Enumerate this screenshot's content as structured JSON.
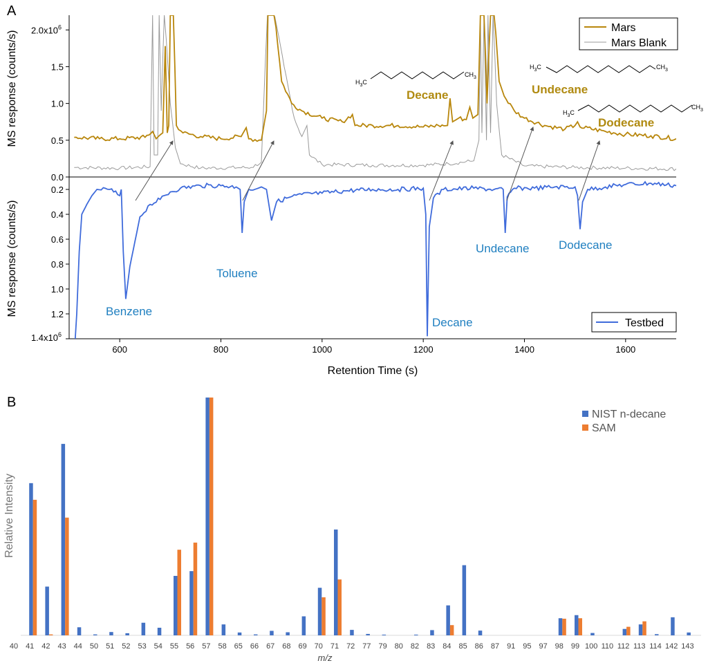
{
  "colors": {
    "mars": "#b8860b",
    "mars_label": "#b08a10",
    "blank": "#999999",
    "testbed": "#3f6bdb",
    "testbed_label": "#1f7fc0",
    "nist": "#4472c4",
    "sam": "#ed7d31",
    "arrow": "#555555"
  },
  "chart_data": [
    {
      "type": "line",
      "panel": "A (upper)",
      "panel_label": "A",
      "ylabel": "MS response (counts/s)",
      "y_ticks": [
        "0.0",
        "0.5",
        "1.0",
        "1.5",
        "2.0x10"
      ],
      "y_tick_exp": "6",
      "y_tick_values": [
        0,
        0.5,
        1.0,
        1.5,
        2.0
      ],
      "ylim": [
        0,
        2.2
      ],
      "xlim": [
        500,
        1700
      ],
      "series": [
        {
          "name": "Mars",
          "points": [
            [
              510,
              0.54
            ],
            [
              560,
              0.52
            ],
            [
              600,
              0.52
            ],
            [
              650,
              0.54
            ],
            [
              665,
              0.62
            ],
            [
              672,
              0.52
            ],
            [
              685,
              0.6
            ],
            [
              690,
              1.78
            ],
            [
              694,
              0.6
            ],
            [
              697,
              0.7
            ],
            [
              700,
              2.3
            ],
            [
              706,
              2.3
            ],
            [
              712,
              0.7
            ],
            [
              725,
              0.6
            ],
            [
              760,
              0.55
            ],
            [
              800,
              0.52
            ],
            [
              840,
              0.55
            ],
            [
              850,
              0.67
            ],
            [
              855,
              0.52
            ],
            [
              880,
              0.5
            ],
            [
              890,
              0.9
            ],
            [
              893,
              2.3
            ],
            [
              905,
              2.3
            ],
            [
              920,
              1.3
            ],
            [
              940,
              1.0
            ],
            [
              960,
              0.9
            ],
            [
              1000,
              0.8
            ],
            [
              1040,
              0.75
            ],
            [
              1060,
              0.85
            ],
            [
              1065,
              0.7
            ],
            [
              1100,
              0.7
            ],
            [
              1150,
              0.7
            ],
            [
              1200,
              0.68
            ],
            [
              1230,
              0.7
            ],
            [
              1248,
              0.7
            ],
            [
              1253,
              1.07
            ],
            [
              1258,
              0.75
            ],
            [
              1270,
              0.8
            ],
            [
              1285,
              0.78
            ],
            [
              1292,
              0.95
            ],
            [
              1298,
              0.8
            ],
            [
              1308,
              0.85
            ],
            [
              1313,
              2.3
            ],
            [
              1320,
              2.3
            ],
            [
              1326,
              1.0
            ],
            [
              1333,
              2.3
            ],
            [
              1340,
              2.3
            ],
            [
              1350,
              1.3
            ],
            [
              1360,
              1.1
            ],
            [
              1380,
              0.9
            ],
            [
              1400,
              0.8
            ],
            [
              1440,
              0.7
            ],
            [
              1480,
              0.65
            ],
            [
              1500,
              0.7
            ],
            [
              1505,
              0.75
            ],
            [
              1510,
              0.68
            ],
            [
              1560,
              0.62
            ],
            [
              1600,
              0.58
            ],
            [
              1650,
              0.56
            ],
            [
              1700,
              0.52
            ]
          ],
          "noise": 0.03
        },
        {
          "name": "Mars Blank",
          "points": [
            [
              510,
              0.13
            ],
            [
              600,
              0.12
            ],
            [
              660,
              0.14
            ],
            [
              665,
              2.3
            ],
            [
              668,
              0.3
            ],
            [
              675,
              0.3
            ],
            [
              678,
              2.3
            ],
            [
              682,
              0.9
            ],
            [
              688,
              2.3
            ],
            [
              700,
              1.0
            ],
            [
              710,
              0.4
            ],
            [
              720,
              0.18
            ],
            [
              760,
              0.12
            ],
            [
              860,
              0.13
            ],
            [
              880,
              0.2
            ],
            [
              892,
              2.3
            ],
            [
              903,
              2.3
            ],
            [
              925,
              1.5
            ],
            [
              945,
              0.8
            ],
            [
              960,
              0.55
            ],
            [
              970,
              0.7
            ],
            [
              975,
              0.3
            ],
            [
              1000,
              0.17
            ],
            [
              1100,
              0.16
            ],
            [
              1200,
              0.16
            ],
            [
              1250,
              0.18
            ],
            [
              1300,
              0.22
            ],
            [
              1310,
              0.5
            ],
            [
              1313,
              2.3
            ],
            [
              1316,
              0.6
            ],
            [
              1320,
              2.3
            ],
            [
              1325,
              0.5
            ],
            [
              1328,
              2.3
            ],
            [
              1333,
              0.6
            ],
            [
              1338,
              2.3
            ],
            [
              1345,
              1.0
            ],
            [
              1355,
              0.3
            ],
            [
              1400,
              0.15
            ],
            [
              1500,
              0.13
            ],
            [
              1600,
              0.12
            ],
            [
              1700,
              0.11
            ]
          ],
          "noise": 0.025
        }
      ],
      "legend": [
        "Mars",
        "Mars Blank"
      ],
      "annotations": [
        "Decane",
        "Undecane",
        "Dodecane"
      ]
    },
    {
      "type": "line",
      "panel": "A (lower)",
      "ylabel": "MS response (counts/s)",
      "xlabel": "Retention Time (s)",
      "x_ticks": [
        "600",
        "800",
        "1000",
        "1200",
        "1400",
        "1600"
      ],
      "x_tick_values": [
        600,
        800,
        1000,
        1200,
        1400,
        1600
      ],
      "y_ticks": [
        "0.2",
        "0.4",
        "0.6",
        "0.8",
        "1.0",
        "1.2",
        "1.4x10"
      ],
      "y_tick_exp": "6",
      "y_tick_values": [
        0.2,
        0.4,
        0.6,
        0.8,
        1.0,
        1.2,
        1.4
      ],
      "ylim": [
        0.1,
        1.4
      ],
      "y_inverted": true,
      "xlim": [
        500,
        1700
      ],
      "series": [
        {
          "name": "Testbed",
          "points": [
            [
              512,
              1.4
            ],
            [
              515,
              1.2
            ],
            [
              520,
              0.7
            ],
            [
              525,
              0.4
            ],
            [
              535,
              0.32
            ],
            [
              545,
              0.25
            ],
            [
              555,
              0.2
            ],
            [
              580,
              0.2
            ],
            [
              600,
              0.25
            ],
            [
              603,
              0.2
            ],
            [
              607,
              0.7
            ],
            [
              612,
              1.08
            ],
            [
              620,
              0.82
            ],
            [
              630,
              0.62
            ],
            [
              640,
              0.42
            ],
            [
              660,
              0.32
            ],
            [
              680,
              0.28
            ],
            [
              700,
              0.22
            ],
            [
              720,
              0.19
            ],
            [
              760,
              0.17
            ],
            [
              800,
              0.17
            ],
            [
              830,
              0.18
            ],
            [
              838,
              0.2
            ],
            [
              842,
              0.55
            ],
            [
              846,
              0.3
            ],
            [
              855,
              0.2
            ],
            [
              880,
              0.18
            ],
            [
              890,
              0.2
            ],
            [
              900,
              0.45
            ],
            [
              910,
              0.3
            ],
            [
              930,
              0.27
            ],
            [
              960,
              0.24
            ],
            [
              1000,
              0.23
            ],
            [
              1050,
              0.21
            ],
            [
              1100,
              0.2
            ],
            [
              1150,
              0.2
            ],
            [
              1200,
              0.19
            ],
            [
              1205,
              0.4
            ],
            [
              1208,
              1.38
            ],
            [
              1212,
              0.5
            ],
            [
              1220,
              0.27
            ],
            [
              1240,
              0.2
            ],
            [
              1300,
              0.19
            ],
            [
              1340,
              0.2
            ],
            [
              1358,
              0.2
            ],
            [
              1362,
              0.55
            ],
            [
              1366,
              0.26
            ],
            [
              1380,
              0.19
            ],
            [
              1420,
              0.19
            ],
            [
              1460,
              0.18
            ],
            [
              1500,
              0.18
            ],
            [
              1505,
              0.25
            ],
            [
              1510,
              0.52
            ],
            [
              1515,
              0.3
            ],
            [
              1525,
              0.2
            ],
            [
              1560,
              0.18
            ],
            [
              1600,
              0.16
            ],
            [
              1650,
              0.15
            ],
            [
              1700,
              0.17
            ]
          ],
          "noise": 0.018
        }
      ],
      "legend": [
        "Testbed"
      ],
      "annotations": [
        "Benzene",
        "Toluene",
        "Decane",
        "Undecane",
        "Dodecane"
      ]
    },
    {
      "type": "bar",
      "panel": "B",
      "panel_label": "B",
      "xlabel": "m/z",
      "ylabel": "Relative Intensity",
      "ylim": [
        0,
        100
      ],
      "categories": [
        "40",
        "41",
        "42",
        "43",
        "44",
        "50",
        "51",
        "52",
        "53",
        "54",
        "55",
        "56",
        "57",
        "58",
        "65",
        "66",
        "67",
        "68",
        "69",
        "70",
        "71",
        "72",
        "77",
        "79",
        "80",
        "82",
        "83",
        "84",
        "85",
        "86",
        "87",
        "91",
        "95",
        "97",
        "98",
        "99",
        "100",
        "110",
        "112",
        "113",
        "114",
        "142",
        "143"
      ],
      "series": [
        {
          "name": "NIST n-decane",
          "values": [
            0,
            64,
            20.5,
            80.5,
            3.4,
            0.4,
            1.4,
            0.9,
            5.3,
            3.2,
            25,
            27,
            100,
            4.6,
            1.2,
            0.4,
            1.9,
            1.3,
            8,
            20,
            44.5,
            2.3,
            0.6,
            0.3,
            0,
            0.3,
            2.2,
            12.6,
            29.5,
            2,
            0,
            0,
            0,
            0,
            7.2,
            8.5,
            1,
            0,
            2.7,
            4.6,
            0.5,
            7.6,
            1.2
          ]
        },
        {
          "name": "SAM",
          "values": [
            0,
            57,
            0.4,
            49.5,
            0,
            0,
            0,
            0,
            0,
            0,
            36,
            39,
            100,
            0,
            0,
            0,
            0,
            0,
            0,
            16,
            23.5,
            0,
            0,
            0,
            0,
            0,
            0,
            4.3,
            0,
            0,
            0,
            0,
            0,
            0,
            7,
            7.2,
            0,
            0,
            3.6,
            5.9,
            0,
            0,
            0
          ]
        }
      ],
      "legend": [
        "NIST n-decane",
        "SAM"
      ]
    }
  ],
  "labels": {
    "panel_a": "A",
    "panel_b": "B",
    "upper_ylabel": "MS response (counts/s)",
    "lower_ylabel": "MS response (counts/s)",
    "xlabel_a": "Retention Time (s)",
    "xlabel_b": "m/z",
    "ylabel_b": "Relative Intensity",
    "legend_mars": "Mars",
    "legend_blank": "Mars Blank",
    "legend_testbed": "Testbed",
    "legend_nist": "NIST n-decane",
    "legend_sam": "SAM",
    "mars_decane": "Decane",
    "mars_undecane": "Undecane",
    "mars_dodecane": "Dodecane",
    "tb_benzene": "Benzene",
    "tb_toluene": "Toluene",
    "tb_decane": "Decane",
    "tb_undecane": "Undecane",
    "tb_dodecane": "Dodecane",
    "mol_h3c": "H",
    "mol_sub3": "3",
    "mol_c": "C",
    "mol_ch": "CH",
    "upper_exp_base": "2.0x10",
    "upper_exp": "6",
    "lower_exp_base": "1.4x10",
    "lower_exp": "6"
  }
}
